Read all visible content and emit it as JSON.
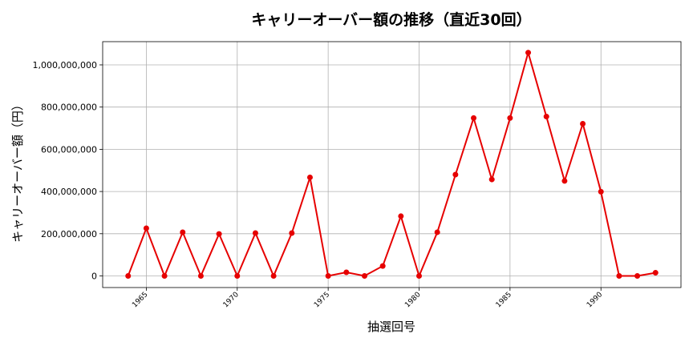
{
  "chart_data": {
    "type": "line",
    "title": "キャリーオーバー額の推移（直近30回）",
    "xlabel": "抽選回号",
    "ylabel": "キャリーオーバー額（円）",
    "xlim": [
      1962.6,
      1994.4
    ],
    "ylim": [
      -55000000,
      1110000000
    ],
    "xticks": [
      1965,
      1970,
      1975,
      1980,
      1985,
      1990
    ],
    "xtick_labels": [
      "1965",
      "1970",
      "1975",
      "1980",
      "1985",
      "1990"
    ],
    "yticks": [
      0,
      200000000,
      400000000,
      600000000,
      800000000,
      1000000000
    ],
    "ytick_labels": [
      "0",
      "200,000,000",
      "400,000,000",
      "600,000,000",
      "800,000,000",
      "1,000,000,000"
    ],
    "grid": true,
    "color": "#e60000",
    "x": [
      1964,
      1965,
      1966,
      1967,
      1968,
      1969,
      1970,
      1971,
      1972,
      1973,
      1974,
      1975,
      1976,
      1977,
      1978,
      1979,
      1980,
      1981,
      1982,
      1983,
      1984,
      1985,
      1986,
      1987,
      1988,
      1989,
      1990,
      1991,
      1992,
      1993
    ],
    "values": [
      0,
      226000000,
      0,
      207000000,
      0,
      199000000,
      0,
      203000000,
      0,
      203000000,
      467000000,
      0,
      17000000,
      0,
      47000000,
      283000000,
      0,
      207000000,
      480000000,
      748000000,
      457000000,
      748000000,
      1058000000,
      755000000,
      450000000,
      721000000,
      399000000,
      0,
      0,
      15000000
    ]
  }
}
